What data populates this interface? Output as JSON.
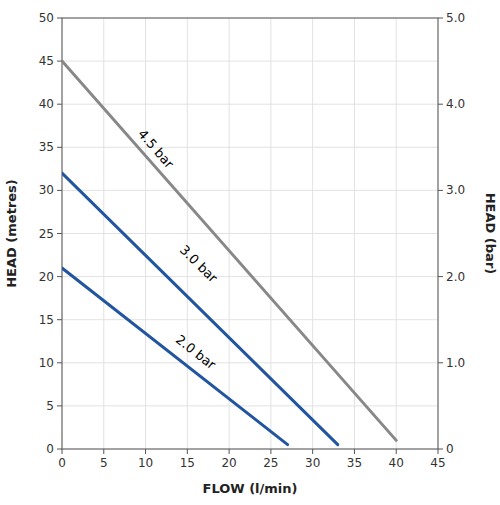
{
  "chart_data": {
    "type": "line",
    "xlabel": "FLOW (l/min)",
    "ylabel": "HEAD (metres)",
    "y2label": "HEAD (bar)",
    "xlim": [
      0,
      45
    ],
    "ylim": [
      0,
      50
    ],
    "y2lim": [
      0,
      5.0
    ],
    "xticks": [
      0,
      5,
      10,
      15,
      20,
      25,
      30,
      35,
      40,
      45
    ],
    "yticks": [
      0,
      5,
      10,
      15,
      20,
      25,
      30,
      35,
      40,
      45,
      50
    ],
    "y2ticks": [
      0,
      {
        "value": 1.0,
        "label": "1.0"
      },
      {
        "value": 2.0,
        "label": "2.0"
      },
      {
        "value": 3.0,
        "label": "3.0"
      },
      {
        "value": 4.0,
        "label": "4.0"
      },
      {
        "value": 5.0,
        "label": "5.0"
      }
    ],
    "grid": true,
    "series": [
      {
        "color": "#888888",
        "x": [
          0,
          40
        ],
        "values": [
          45,
          1
        ]
      },
      {
        "color": "#2255a0",
        "x": [
          0,
          33
        ],
        "values": [
          32,
          0.5
        ]
      },
      {
        "color": "#2255a0",
        "x": [
          0,
          27
        ],
        "values": [
          21,
          0.5
        ]
      }
    ],
    "annotations": [
      {
        "text": "4.5 bar",
        "x": 9.0,
        "y": 36.5
      },
      {
        "text": "3.0 bar",
        "x": 14.0,
        "y": 23.0
      },
      {
        "text": "2.0 bar",
        "x": 13.5,
        "y": 12.5
      }
    ]
  }
}
